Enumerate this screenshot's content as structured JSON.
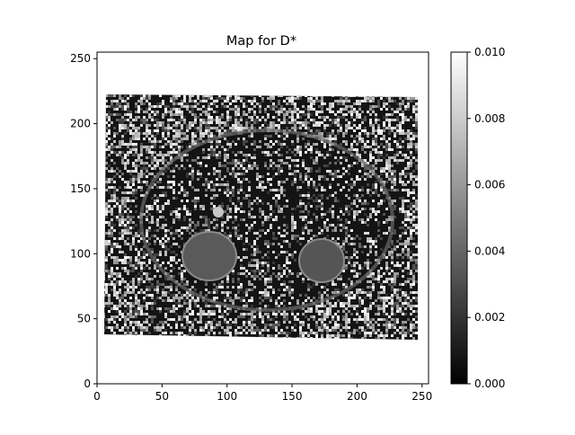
{
  "chart_data": {
    "type": "heatmap",
    "title": "Map for D*",
    "xlabel": "",
    "ylabel": "",
    "xlim": [
      0,
      255
    ],
    "ylim": [
      0,
      255
    ],
    "x_ticks": [
      0,
      50,
      100,
      150,
      200,
      250
    ],
    "y_ticks": [
      0,
      50,
      100,
      150,
      200,
      250
    ],
    "x_tick_labels": [
      "0",
      "50",
      "100",
      "150",
      "200",
      "250"
    ],
    "y_tick_labels": [
      "0",
      "50",
      "100",
      "150",
      "200",
      "250"
    ],
    "colormap": "gray",
    "colorbar": {
      "min": 0.0,
      "max": 0.01,
      "ticks": [
        0.0,
        0.002,
        0.004,
        0.006,
        0.008,
        0.01
      ],
      "tick_labels": [
        "0.000",
        "0.002",
        "0.004",
        "0.006",
        "0.008",
        "0.010"
      ],
      "placement": "right"
    },
    "grid": false,
    "colors": {
      "low": "#000000",
      "high": "#ffffff",
      "axes": "#000000"
    }
  }
}
